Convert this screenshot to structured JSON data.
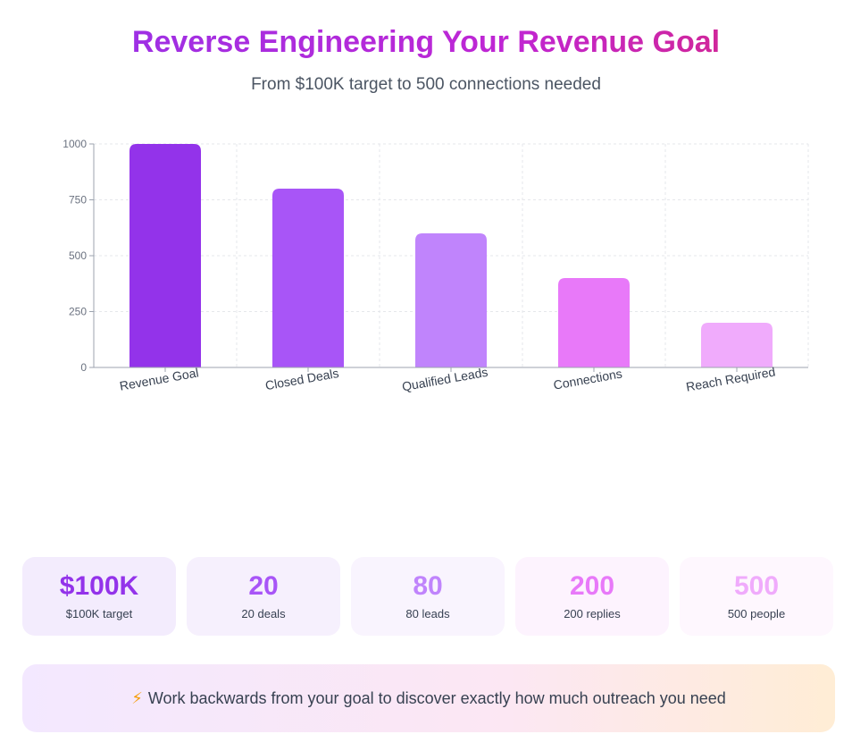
{
  "header": {
    "title": "Reverse Engineering Your Revenue Goal",
    "subtitle": "From $100K target to 500 connections needed"
  },
  "chart_data": {
    "type": "bar",
    "categories": [
      "Revenue Goal",
      "Closed Deals",
      "Qualified Leads",
      "Connections",
      "Reach Required"
    ],
    "values": [
      1000,
      800,
      600,
      400,
      200
    ],
    "yticks": [
      0,
      250,
      500,
      750,
      1000
    ],
    "ylim": [
      0,
      1000
    ],
    "grid": true,
    "colors": [
      "#9333ea",
      "#a855f7",
      "#c084fc",
      "#e879f9",
      "#f0abfc"
    ]
  },
  "stats": [
    {
      "value": "$100K",
      "label": "$100K target",
      "color": "#9333ea",
      "bg": "#f3ecfd"
    },
    {
      "value": "20",
      "label": "20 deals",
      "color": "#a855f7",
      "bg": "#f6f0fd"
    },
    {
      "value": "80",
      "label": "80 leads",
      "color": "#c084fc",
      "bg": "#f9f4fe"
    },
    {
      "value": "200",
      "label": "200 replies",
      "color": "#e879f9",
      "bg": "#fdf3fe"
    },
    {
      "value": "500",
      "label": "500 people",
      "color": "#f0abfc",
      "bg": "#fef7fe"
    }
  ],
  "banner": {
    "icon": "⚡",
    "text": "Work backwards from your goal to discover exactly how much outreach you need"
  }
}
